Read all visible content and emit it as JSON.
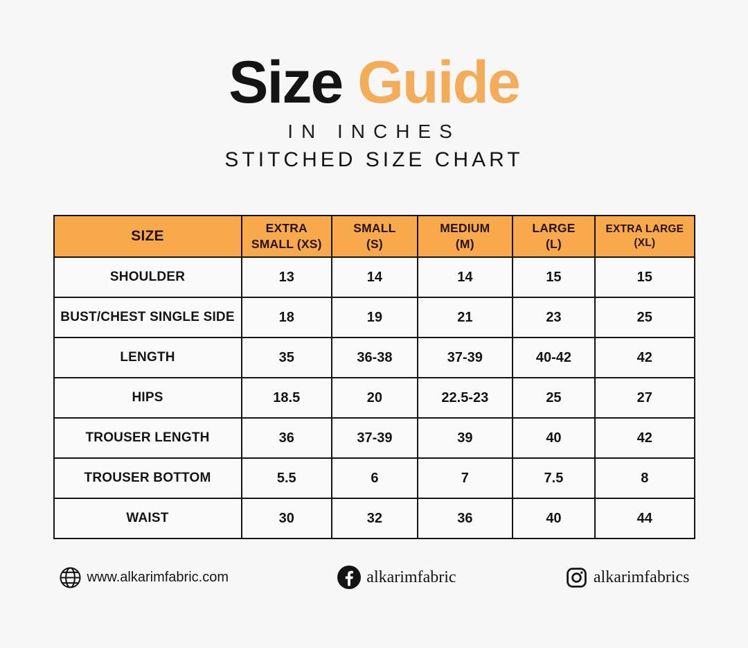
{
  "header": {
    "title_black": "Size",
    "title_orange": "Guide",
    "subtitle": "IN INCHES",
    "chart_title": "STITCHED SIZE CHART"
  },
  "colors": {
    "accent_orange_title": "#f3ad58",
    "accent_orange_header": "#f7a94c",
    "background": "#f7f7f8",
    "border": "#141414"
  },
  "chart_data": {
    "type": "table",
    "title": "Size Guide — Stitched Size Chart (in inches)",
    "units": "inches",
    "columns": [
      "SIZE",
      "EXTRA SMALL (XS)",
      "SMALL (S)",
      "MEDIUM (M)",
      "LARGE (L)",
      "EXTRA LARGE (XL)"
    ],
    "header_lines": [
      [
        "SIZE"
      ],
      [
        "EXTRA",
        "SMALL (XS)"
      ],
      [
        "SMALL",
        "(S)"
      ],
      [
        "MEDIUM",
        "(M)"
      ],
      [
        "LARGE",
        "(L)"
      ],
      [
        "EXTRA LARGE",
        "(XL)"
      ]
    ],
    "rows": [
      {
        "label": "SHOULDER",
        "values": [
          "13",
          "14",
          "14",
          "15",
          "15"
        ]
      },
      {
        "label": "BUST/CHEST SINGLE SIDE",
        "values": [
          "18",
          "19",
          "21",
          "23",
          "25"
        ]
      },
      {
        "label": "LENGTH",
        "values": [
          "35",
          "36-38",
          "37-39",
          "40-42",
          "42"
        ]
      },
      {
        "label": "HIPS",
        "values": [
          "18.5",
          "20",
          "22.5-23",
          "25",
          "27"
        ]
      },
      {
        "label": "TROUSER LENGTH",
        "values": [
          "36",
          "37-39",
          "39",
          "40",
          "42"
        ]
      },
      {
        "label": "TROUSER BOTTOM",
        "values": [
          "5.5",
          "6",
          "7",
          "7.5",
          "8"
        ]
      },
      {
        "label": "WAIST",
        "values": [
          "30",
          "32",
          "36",
          "40",
          "44"
        ]
      }
    ]
  },
  "footer": {
    "website": "www.alkarimfabric.com",
    "facebook": "alkarimfabric",
    "instagram": "alkarimfabrics"
  }
}
